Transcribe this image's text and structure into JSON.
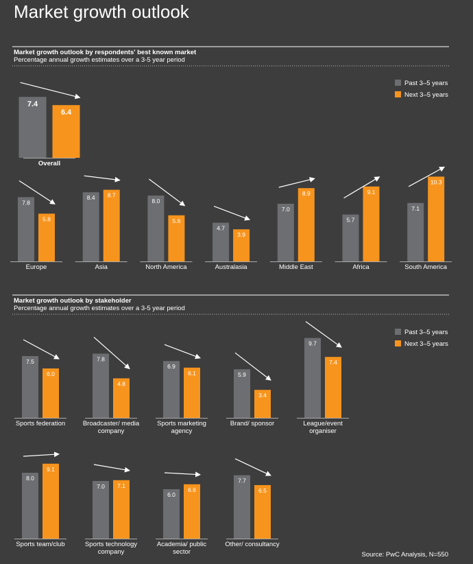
{
  "title": "Market growth outlook",
  "source": "Source: PwC Analysis, N=550",
  "chart_data": [
    {
      "type": "bar",
      "title": "Market growth outlook by respondents' best known market",
      "subtitle": "Percentage annual growth estimates over a 3-5 year period",
      "categories": [
        "Overall",
        "Europe",
        "Asia",
        "North America",
        "Australasia",
        "Middle East",
        "Africa",
        "South America"
      ],
      "series": [
        {
          "name": "Past 3–5 years",
          "color": "#6d6e71",
          "values": [
            7.4,
            7.8,
            8.4,
            8,
            4.7,
            7,
            5.7,
            7.1
          ],
          "value_labels": [
            "7.4",
            "7.8",
            "8.4",
            "8.0",
            "4.7",
            "7.0",
            "5.7",
            "7.1"
          ]
        },
        {
          "name": "Next 3–5 years",
          "color": "#f7941d",
          "values": [
            6.4,
            5.8,
            8.7,
            5.6,
            3.9,
            8.9,
            9.1,
            10.3
          ],
          "value_labels": [
            "6.4",
            "5.8",
            "8.7",
            "5.6",
            "3.9",
            "8.9",
            "9.1",
            "10.3"
          ]
        }
      ]
    },
    {
      "type": "bar",
      "title": "Market growth outlook by stakeholder",
      "subtitle": "Percentage annual growth estimates over a 3-5 year period",
      "categories": [
        "Sports federation",
        "Broadcaster/ media company",
        "Sports marketing agency",
        "Brand/ sponsor",
        "League/event organiser",
        "Sports team/club",
        "Sports technology company",
        "Academia/ public sector",
        "Other/ consultancy"
      ],
      "series": [
        {
          "name": "Past 3–5 years",
          "color": "#6d6e71",
          "values": [
            7.5,
            7.8,
            6.9,
            5.9,
            9.7,
            8,
            7,
            6,
            7.7
          ],
          "value_labels": [
            "7.5",
            "7.8",
            "6.9",
            "5.9",
            "9.7",
            "8.0",
            "7.0",
            "6.0",
            "7.7"
          ]
        },
        {
          "name": "Next 3–5 years",
          "color": "#f7941d",
          "values": [
            6,
            4.8,
            6.1,
            3.4,
            7.4,
            9.1,
            7.1,
            6.6,
            6.5
          ],
          "value_labels": [
            "6.0",
            "4.8",
            "6.1",
            "3.4",
            "7.4",
            "9.1",
            "7.1",
            "6.6",
            "6.5"
          ]
        }
      ]
    }
  ]
}
